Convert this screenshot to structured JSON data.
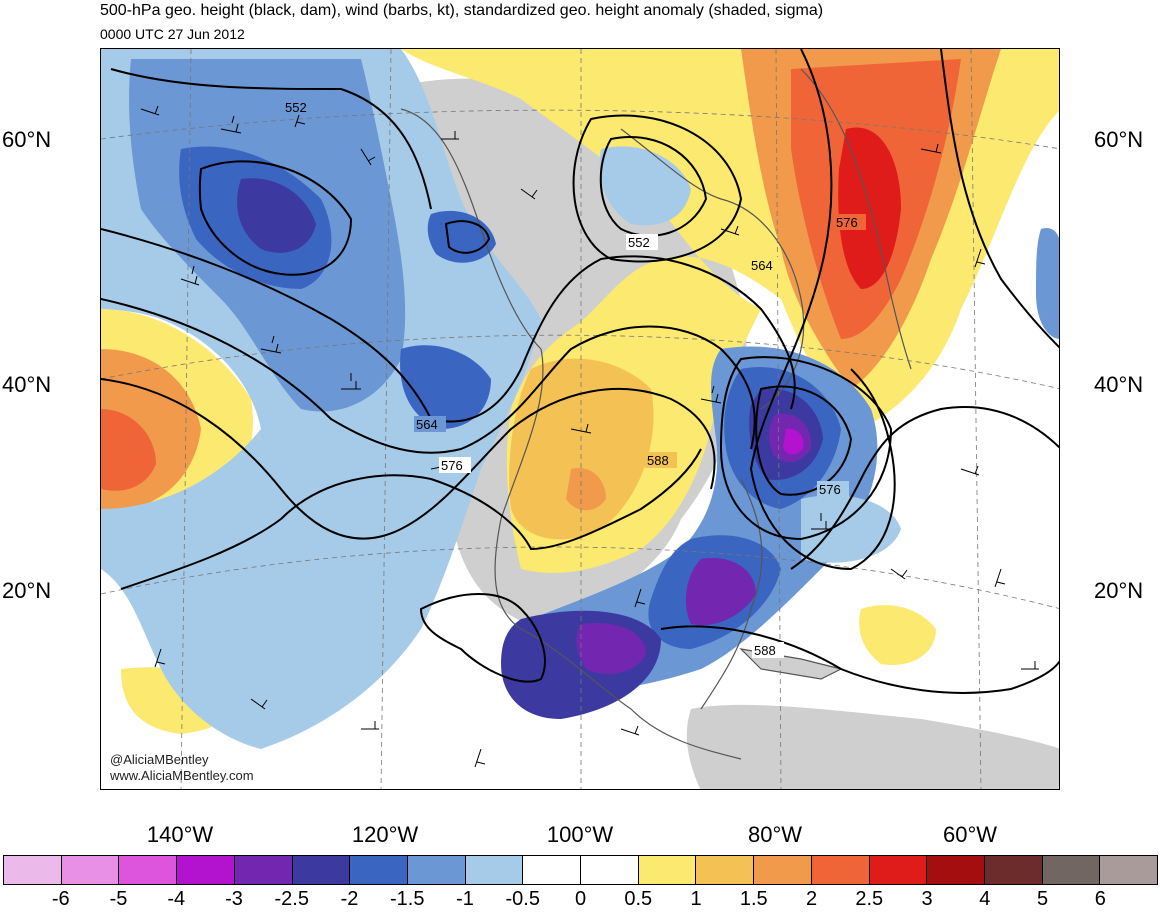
{
  "header": {
    "title": "500-hPa geo. height (black, dam), wind (barbs, kt), standardized geo. height anomaly (shaded, sigma)",
    "valid_time": "0000 UTC 27 Jun 2012"
  },
  "latitude_labels": {
    "left": [
      "60°N",
      "40°N",
      "20°N"
    ],
    "right": [
      "60°N",
      "40°N",
      "20°N"
    ]
  },
  "longitude_labels": [
    "140°W",
    "120°W",
    "100°W",
    "80°W",
    "60°W"
  ],
  "contour_labels": [
    "552",
    "552",
    "564",
    "564",
    "576",
    "576",
    "576",
    "588",
    "588"
  ],
  "credits": {
    "handle": "@AliciaMBentley",
    "website": "www.AliciaMBentley.com"
  },
  "colorbar": {
    "colors": [
      "#ebb9ea",
      "#e890e6",
      "#dd55dd",
      "#b312cf",
      "#7327b1",
      "#3c3aa1",
      "#3a66c2",
      "#6b97d4",
      "#a6cbe8",
      "#ffffff",
      "#ffffff",
      "#fbe970",
      "#f4c155",
      "#f29a4b",
      "#ef6537",
      "#e01c1a",
      "#a50e0e",
      "#6d2c2c",
      "#726663",
      "#a89b99"
    ],
    "tick_labels": [
      "-6",
      "-5",
      "-4",
      "-3",
      "-2.5",
      "-2",
      "-1.5",
      "-1",
      "-0.5",
      "0",
      "0.5",
      "1",
      "1.5",
      "2",
      "2.5",
      "3",
      "4",
      "5",
      "6"
    ]
  },
  "land_color": "#cfcfcf"
}
